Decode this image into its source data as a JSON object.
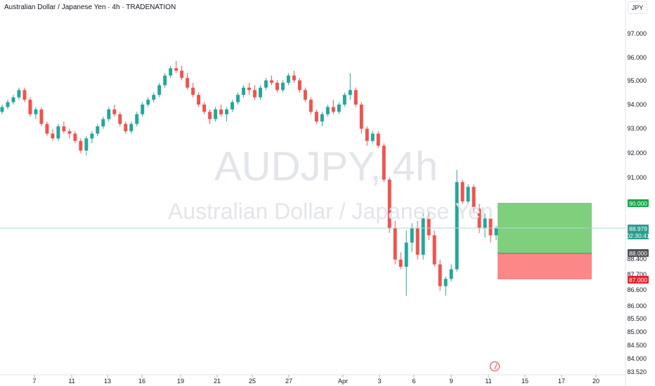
{
  "header": {
    "title": "Australian Dollar / Japanese Yen · 4h · TRADENATION",
    "currency": "JPY"
  },
  "watermark": {
    "symbol": "AUDJPY, 4h",
    "name": "Australian Dollar / Japanese Yen"
  },
  "colors": {
    "up": "#26a69a",
    "down": "#ef5350",
    "target_zone": "#7fcf7d",
    "stop_zone": "#fb8787",
    "target_badge": "#14a845",
    "stop_badge": "#e8202a",
    "entry_badge": "#505258",
    "current_badge": "#2a9d8f",
    "current_line": "#a9dad3"
  },
  "chart_data": {
    "type": "candlestick",
    "interval": "4h",
    "price_axis_ticks": [
      "97.000",
      "96.000",
      "95.000",
      "94.000",
      "93.000",
      "92.000",
      "91.000",
      "88.400",
      "87.700",
      "86.600",
      "86.000",
      "85.500",
      "85.000",
      "84.500",
      "84.000",
      "83.520"
    ],
    "date_axis_ticks": [
      "7",
      "11",
      "13",
      "16",
      "19",
      "21",
      "25",
      "27",
      "Apr",
      "3",
      "6",
      "9",
      "11",
      "15",
      "17",
      "20"
    ],
    "current_price": "88.979",
    "countdown": "02:30:41",
    "position": {
      "target": "90.000",
      "entry": "88.000",
      "stop": "87.000"
    },
    "candles": [
      [
        93.7,
        94.0,
        93.6,
        93.9
      ],
      [
        93.9,
        94.2,
        93.8,
        94.1
      ],
      [
        94.1,
        94.4,
        94.0,
        94.3
      ],
      [
        94.3,
        94.7,
        94.2,
        94.6
      ],
      [
        94.6,
        94.7,
        94.1,
        94.2
      ],
      [
        94.2,
        94.3,
        93.5,
        93.6
      ],
      [
        93.6,
        93.9,
        93.4,
        93.8
      ],
      [
        93.8,
        93.9,
        93.1,
        93.2
      ],
      [
        93.2,
        93.3,
        92.7,
        92.8
      ],
      [
        92.8,
        93.0,
        92.5,
        92.6
      ],
      [
        92.6,
        93.2,
        92.5,
        93.1
      ],
      [
        93.1,
        93.3,
        92.8,
        92.9
      ],
      [
        92.9,
        93.0,
        92.6,
        92.8
      ],
      [
        92.8,
        92.9,
        92.4,
        92.5
      ],
      [
        92.5,
        92.6,
        92.0,
        92.1
      ],
      [
        92.1,
        92.7,
        91.9,
        92.6
      ],
      [
        92.6,
        92.9,
        92.4,
        92.8
      ],
      [
        92.8,
        93.2,
        92.7,
        93.1
      ],
      [
        93.1,
        93.5,
        93.0,
        93.4
      ],
      [
        93.4,
        93.9,
        93.3,
        93.8
      ],
      [
        93.8,
        94.0,
        93.5,
        93.6
      ],
      [
        93.6,
        93.7,
        93.1,
        93.2
      ],
      [
        93.2,
        93.3,
        92.8,
        92.9
      ],
      [
        92.9,
        93.3,
        92.8,
        93.2
      ],
      [
        93.2,
        93.7,
        93.1,
        93.6
      ],
      [
        93.6,
        94.1,
        93.5,
        94.0
      ],
      [
        94.0,
        94.3,
        93.9,
        94.2
      ],
      [
        94.2,
        94.5,
        94.1,
        94.4
      ],
      [
        94.4,
        94.9,
        94.3,
        94.8
      ],
      [
        94.8,
        95.3,
        94.7,
        95.2
      ],
      [
        95.2,
        95.6,
        95.1,
        95.5
      ],
      [
        95.5,
        95.8,
        95.3,
        95.4
      ],
      [
        95.4,
        95.6,
        95.0,
        95.1
      ],
      [
        95.1,
        95.3,
        94.6,
        94.7
      ],
      [
        94.7,
        94.9,
        94.3,
        94.4
      ],
      [
        94.4,
        94.5,
        93.9,
        94.0
      ],
      [
        94.0,
        94.1,
        93.6,
        93.7
      ],
      [
        93.7,
        93.8,
        93.2,
        93.4
      ],
      [
        93.4,
        93.9,
        93.3,
        93.8
      ],
      [
        93.8,
        94.0,
        93.5,
        93.6
      ],
      [
        93.6,
        93.9,
        93.3,
        93.8
      ],
      [
        93.8,
        94.2,
        93.7,
        94.1
      ],
      [
        94.1,
        94.5,
        94.0,
        94.4
      ],
      [
        94.4,
        94.8,
        94.3,
        94.7
      ],
      [
        94.7,
        94.9,
        94.4,
        94.6
      ],
      [
        94.6,
        94.8,
        94.2,
        94.3
      ],
      [
        94.3,
        94.8,
        94.2,
        94.7
      ],
      [
        94.7,
        95.1,
        94.6,
        95.0
      ],
      [
        95.0,
        95.2,
        94.8,
        94.9
      ],
      [
        94.9,
        95.0,
        94.5,
        94.6
      ],
      [
        94.6,
        95.0,
        94.5,
        94.9
      ],
      [
        94.9,
        95.3,
        94.8,
        95.2
      ],
      [
        95.2,
        95.4,
        94.9,
        95.0
      ],
      [
        95.0,
        95.1,
        94.5,
        94.6
      ],
      [
        94.6,
        94.7,
        94.1,
        94.2
      ],
      [
        94.2,
        94.3,
        93.6,
        93.7
      ],
      [
        93.7,
        93.8,
        93.2,
        93.3
      ],
      [
        93.3,
        93.7,
        93.1,
        93.6
      ],
      [
        93.6,
        94.0,
        93.5,
        93.9
      ],
      [
        93.9,
        94.2,
        93.6,
        93.7
      ],
      [
        93.7,
        94.1,
        93.6,
        94.0
      ],
      [
        94.0,
        94.5,
        93.9,
        94.4
      ],
      [
        94.4,
        95.3,
        94.2,
        94.6
      ],
      [
        94.6,
        94.7,
        93.9,
        94.0
      ],
      [
        94.0,
        94.1,
        92.8,
        93.0
      ],
      [
        93.0,
        93.1,
        92.3,
        92.5
      ],
      [
        92.5,
        92.9,
        92.4,
        92.8
      ],
      [
        92.8,
        92.9,
        92.2,
        92.3
      ],
      [
        92.3,
        92.4,
        90.8,
        90.9
      ],
      [
        90.9,
        91.0,
        88.7,
        88.9
      ],
      [
        88.9,
        89.2,
        87.4,
        87.6
      ],
      [
        87.6,
        87.9,
        87.2,
        87.3
      ],
      [
        87.3,
        88.8,
        86.1,
        88.3
      ],
      [
        88.3,
        89.1,
        87.9,
        88.9
      ],
      [
        88.9,
        89.2,
        87.6,
        87.8
      ],
      [
        87.8,
        89.5,
        87.6,
        89.3
      ],
      [
        89.3,
        89.6,
        88.4,
        88.6
      ],
      [
        88.6,
        88.8,
        87.3,
        87.4
      ],
      [
        87.4,
        87.6,
        86.3,
        86.5
      ],
      [
        86.5,
        86.9,
        86.1,
        86.8
      ],
      [
        86.8,
        87.4,
        86.7,
        87.2
      ],
      [
        87.2,
        91.3,
        87.1,
        90.8
      ],
      [
        90.8,
        90.9,
        89.9,
        90.0
      ],
      [
        90.0,
        90.7,
        89.9,
        90.6
      ],
      [
        90.6,
        90.7,
        89.5,
        89.7
      ],
      [
        89.7,
        89.9,
        88.7,
        88.9
      ],
      [
        88.9,
        89.5,
        88.5,
        89.3
      ],
      [
        89.3,
        89.4,
        88.3,
        88.6
      ],
      [
        88.6,
        89.0,
        88.4,
        88.9
      ]
    ]
  }
}
